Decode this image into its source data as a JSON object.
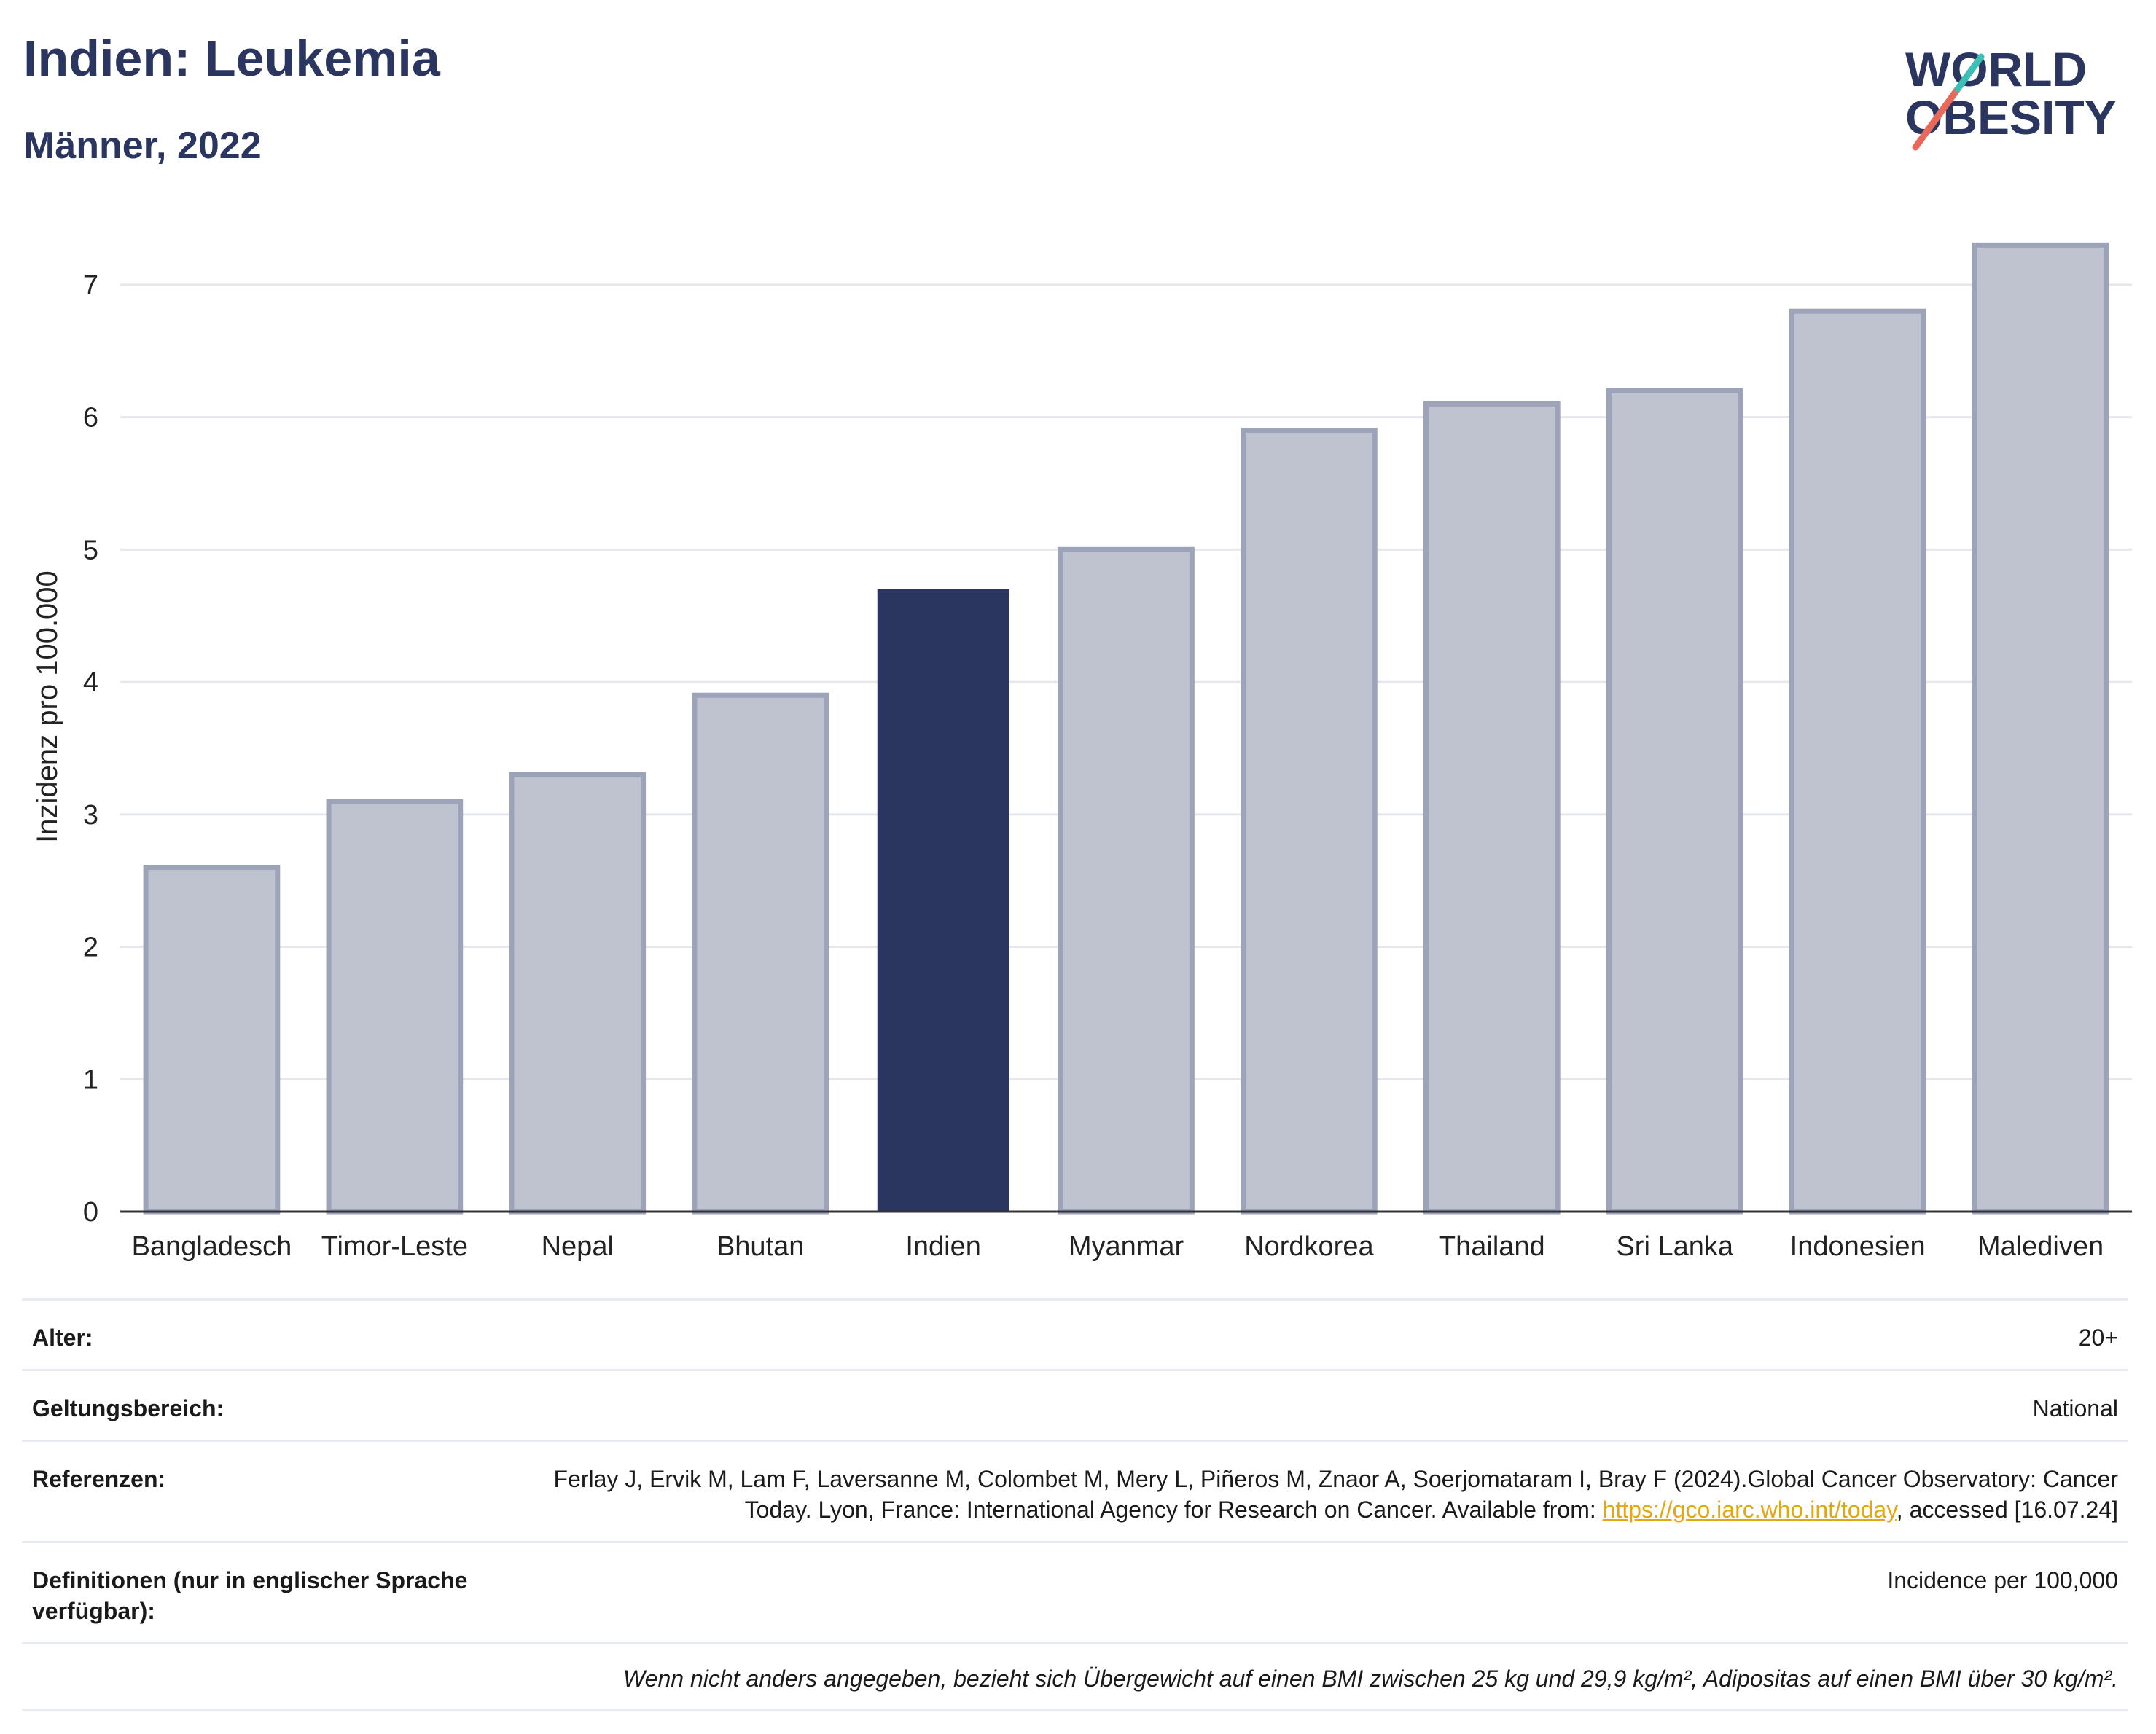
{
  "header": {
    "title": "Indien: Leukemia",
    "subtitle": "Männer, 2022"
  },
  "logo": {
    "line1": "WORLD",
    "line2": "OBESITY"
  },
  "colors": {
    "highlight": "#2b3660",
    "bar": "#bfc3d0",
    "bar_stroke": "#9da3b8",
    "slash_red": "#e8685a",
    "slash_teal": "#3cbfb6"
  },
  "chart_data": {
    "type": "bar",
    "title": "Indien: Leukemia",
    "subtitle": "Männer, 2022",
    "xlabel": "",
    "ylabel": "Inzidenz pro 100.000",
    "categories": [
      "Bangladesch",
      "Timor-Leste",
      "Nepal",
      "Bhutan",
      "Indien",
      "Myanmar",
      "Nordkorea",
      "Thailand",
      "Sri Lanka",
      "Indonesien",
      "Malediven"
    ],
    "values": [
      2.6,
      3.1,
      3.3,
      3.9,
      4.7,
      5.0,
      5.9,
      6.1,
      6.2,
      6.8,
      7.3
    ],
    "highlight": "Indien",
    "ylim": [
      0,
      7.5
    ],
    "yticks": [
      0,
      1,
      2,
      3,
      4,
      5,
      6,
      7
    ],
    "grid": true,
    "legend": "none"
  },
  "info": {
    "rows": [
      {
        "label": "Alter:",
        "value": "20+"
      },
      {
        "label": "Geltungsbereich:",
        "value": "National"
      }
    ],
    "references": {
      "label": "Referenzen:",
      "text_1": "Ferlay J, Ervik M, Lam F, Laversanne M, Colombet M, Mery L, Piñeros M, Znaor A, Soerjomataram I, Bray F (2024).Global Cancer Observatory: Cancer Today. Lyon, France: International Agency for Research on Cancer. Available from: ",
      "link": "https://gco.iarc.who.int/today",
      "text_2": ", accessed [16.07.24]"
    },
    "definitions": {
      "label": "Definitionen (nur in englischer Sprache verfügbar):",
      "value": "Incidence per 100,000"
    },
    "note": "Wenn nicht anders angegeben, bezieht sich Übergewicht auf einen BMI zwischen 25 kg und 29,9 kg/m², Adipositas auf einen BMI über 30 kg/m²."
  }
}
